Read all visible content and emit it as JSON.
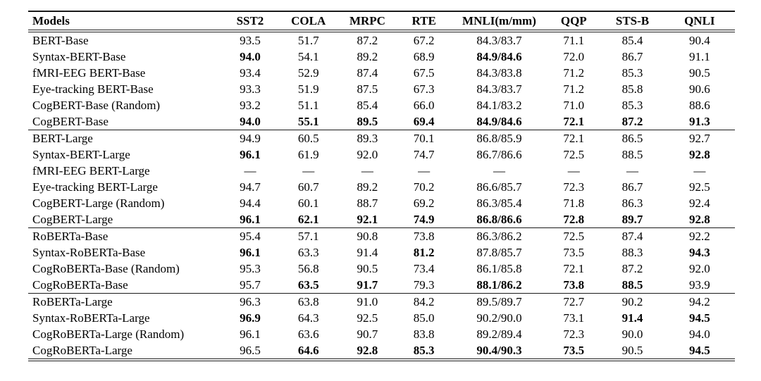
{
  "page": {
    "background_color": "#ffffff",
    "text_color": "#000000",
    "rule_color": "#1a1a1a"
  },
  "table": {
    "columns": [
      {
        "label": "Models",
        "align": "left"
      },
      {
        "label": "SST2",
        "align": "center"
      },
      {
        "label": "COLA",
        "align": "center"
      },
      {
        "label": "MRPC",
        "align": "center"
      },
      {
        "label": "RTE",
        "align": "center"
      },
      {
        "label": "MNLI(m/mm)",
        "align": "center"
      },
      {
        "label": "QQP",
        "align": "center"
      },
      {
        "label": "STS-B",
        "align": "center"
      },
      {
        "label": "QNLI",
        "align": "center"
      }
    ],
    "rows": [
      {
        "model": "BERT-Base",
        "section_start": false,
        "values": [
          "93.5",
          "51.7",
          "87.2",
          "67.2",
          "84.3/83.7",
          "71.1",
          "85.4",
          "90.4"
        ],
        "bold": [
          0,
          0,
          0,
          0,
          0,
          0,
          0,
          0
        ]
      },
      {
        "model": "Syntax-BERT-Base",
        "section_start": false,
        "values": [
          "94.0",
          "54.1",
          "89.2",
          "68.9",
          "84.9/84.6",
          "72.0",
          "86.7",
          "91.1"
        ],
        "bold": [
          1,
          0,
          0,
          0,
          1,
          0,
          0,
          0
        ]
      },
      {
        "model": "fMRI-EEG BERT-Base",
        "section_start": false,
        "values": [
          "93.4",
          "52.9",
          "87.4",
          "67.5",
          "84.3/83.8",
          "71.2",
          "85.3",
          "90.5"
        ],
        "bold": [
          0,
          0,
          0,
          0,
          0,
          0,
          0,
          0
        ]
      },
      {
        "model": "Eye-tracking BERT-Base",
        "section_start": false,
        "values": [
          "93.3",
          "51.9",
          "87.5",
          "67.3",
          "84.3/83.7",
          "71.2",
          "85.8",
          "90.6"
        ],
        "bold": [
          0,
          0,
          0,
          0,
          0,
          0,
          0,
          0
        ]
      },
      {
        "model": "CogBERT-Base (Random)",
        "section_start": false,
        "values": [
          "93.2",
          "51.1",
          "85.4",
          "66.0",
          "84.1/83.2",
          "71.0",
          "85.3",
          "88.6"
        ],
        "bold": [
          0,
          0,
          0,
          0,
          0,
          0,
          0,
          0
        ]
      },
      {
        "model": "CogBERT-Base",
        "section_start": false,
        "values": [
          "94.0",
          "55.1",
          "89.5",
          "69.4",
          "84.9/84.6",
          "72.1",
          "87.2",
          "91.3"
        ],
        "bold": [
          1,
          1,
          1,
          1,
          1,
          1,
          1,
          1
        ]
      },
      {
        "model": "BERT-Large",
        "section_start": true,
        "values": [
          "94.9",
          "60.5",
          "89.3",
          "70.1",
          "86.8/85.9",
          "72.1",
          "86.5",
          "92.7"
        ],
        "bold": [
          0,
          0,
          0,
          0,
          0,
          0,
          0,
          0
        ]
      },
      {
        "model": "Syntax-BERT-Large",
        "section_start": false,
        "values": [
          "96.1",
          "61.9",
          "92.0",
          "74.7",
          "86.7/86.6",
          "72.5",
          "88.5",
          "92.8"
        ],
        "bold": [
          1,
          0,
          0,
          0,
          0,
          0,
          0,
          1
        ]
      },
      {
        "model": "fMRI-EEG BERT-Large",
        "section_start": false,
        "values": [
          "—",
          "—",
          "—",
          "—",
          "—",
          "—",
          "—",
          "—"
        ],
        "bold": [
          0,
          0,
          0,
          0,
          0,
          0,
          0,
          0
        ]
      },
      {
        "model": "Eye-tracking BERT-Large",
        "section_start": false,
        "values": [
          "94.7",
          "60.7",
          "89.2",
          "70.2",
          "86.6/85.7",
          "72.3",
          "86.7",
          "92.5"
        ],
        "bold": [
          0,
          0,
          0,
          0,
          0,
          0,
          0,
          0
        ]
      },
      {
        "model": "CogBERT-Large (Random)",
        "section_start": false,
        "values": [
          "94.4",
          "60.1",
          "88.7",
          "69.2",
          "86.3/85.4",
          "71.8",
          "86.3",
          "92.4"
        ],
        "bold": [
          0,
          0,
          0,
          0,
          0,
          0,
          0,
          0
        ]
      },
      {
        "model": "CogBERT-Large",
        "section_start": false,
        "values": [
          "96.1",
          "62.1",
          "92.1",
          "74.9",
          "86.8/86.6",
          "72.8",
          "89.7",
          "92.8"
        ],
        "bold": [
          1,
          1,
          1,
          1,
          1,
          1,
          1,
          1
        ]
      },
      {
        "model": "RoBERTa-Base",
        "section_start": true,
        "values": [
          "95.4",
          "57.1",
          "90.8",
          "73.8",
          "86.3/86.2",
          "72.5",
          "87.4",
          "92.2"
        ],
        "bold": [
          0,
          0,
          0,
          0,
          0,
          0,
          0,
          0
        ]
      },
      {
        "model": "Syntax-RoBERTa-Base",
        "section_start": false,
        "values": [
          "96.1",
          "63.3",
          "91.4",
          "81.2",
          "87.8/85.7",
          "73.5",
          "88.3",
          "94.3"
        ],
        "bold": [
          1,
          0,
          0,
          1,
          0,
          0,
          0,
          1
        ]
      },
      {
        "model": "CogRoBERTa-Base (Random)",
        "section_start": false,
        "values": [
          "95.3",
          "56.8",
          "90.5",
          "73.4",
          "86.1/85.8",
          "72.1",
          "87.2",
          "92.0"
        ],
        "bold": [
          0,
          0,
          0,
          0,
          0,
          0,
          0,
          0
        ]
      },
      {
        "model": "CogRoBERTa-Base",
        "section_start": false,
        "values": [
          "95.7",
          "63.5",
          "91.7",
          "79.3",
          "88.1/86.2",
          "73.8",
          "88.5",
          "93.9"
        ],
        "bold": [
          0,
          1,
          1,
          0,
          1,
          1,
          1,
          0
        ]
      },
      {
        "model": "RoBERTa-Large",
        "section_start": true,
        "values": [
          "96.3",
          "63.8",
          "91.0",
          "84.2",
          "89.5/89.7",
          "72.7",
          "90.2",
          "94.2"
        ],
        "bold": [
          0,
          0,
          0,
          0,
          0,
          0,
          0,
          0
        ]
      },
      {
        "model": "Syntax-RoBERTa-Large",
        "section_start": false,
        "values": [
          "96.9",
          "64.3",
          "92.5",
          "85.0",
          "90.2/90.0",
          "73.1",
          "91.4",
          "94.5"
        ],
        "bold": [
          1,
          0,
          0,
          0,
          0,
          0,
          1,
          1
        ]
      },
      {
        "model": "CogRoBERTa-Large (Random)",
        "section_start": false,
        "values": [
          "96.1",
          "63.6",
          "90.7",
          "83.8",
          "89.2/89.4",
          "72.3",
          "90.0",
          "94.0"
        ],
        "bold": [
          0,
          0,
          0,
          0,
          0,
          0,
          0,
          0
        ]
      },
      {
        "model": "CogRoBERTa-Large",
        "section_start": false,
        "values": [
          "96.5",
          "64.6",
          "92.8",
          "85.3",
          "90.4/90.3",
          "73.5",
          "90.5",
          "94.5"
        ],
        "bold": [
          0,
          1,
          1,
          1,
          1,
          1,
          0,
          1
        ]
      }
    ]
  }
}
